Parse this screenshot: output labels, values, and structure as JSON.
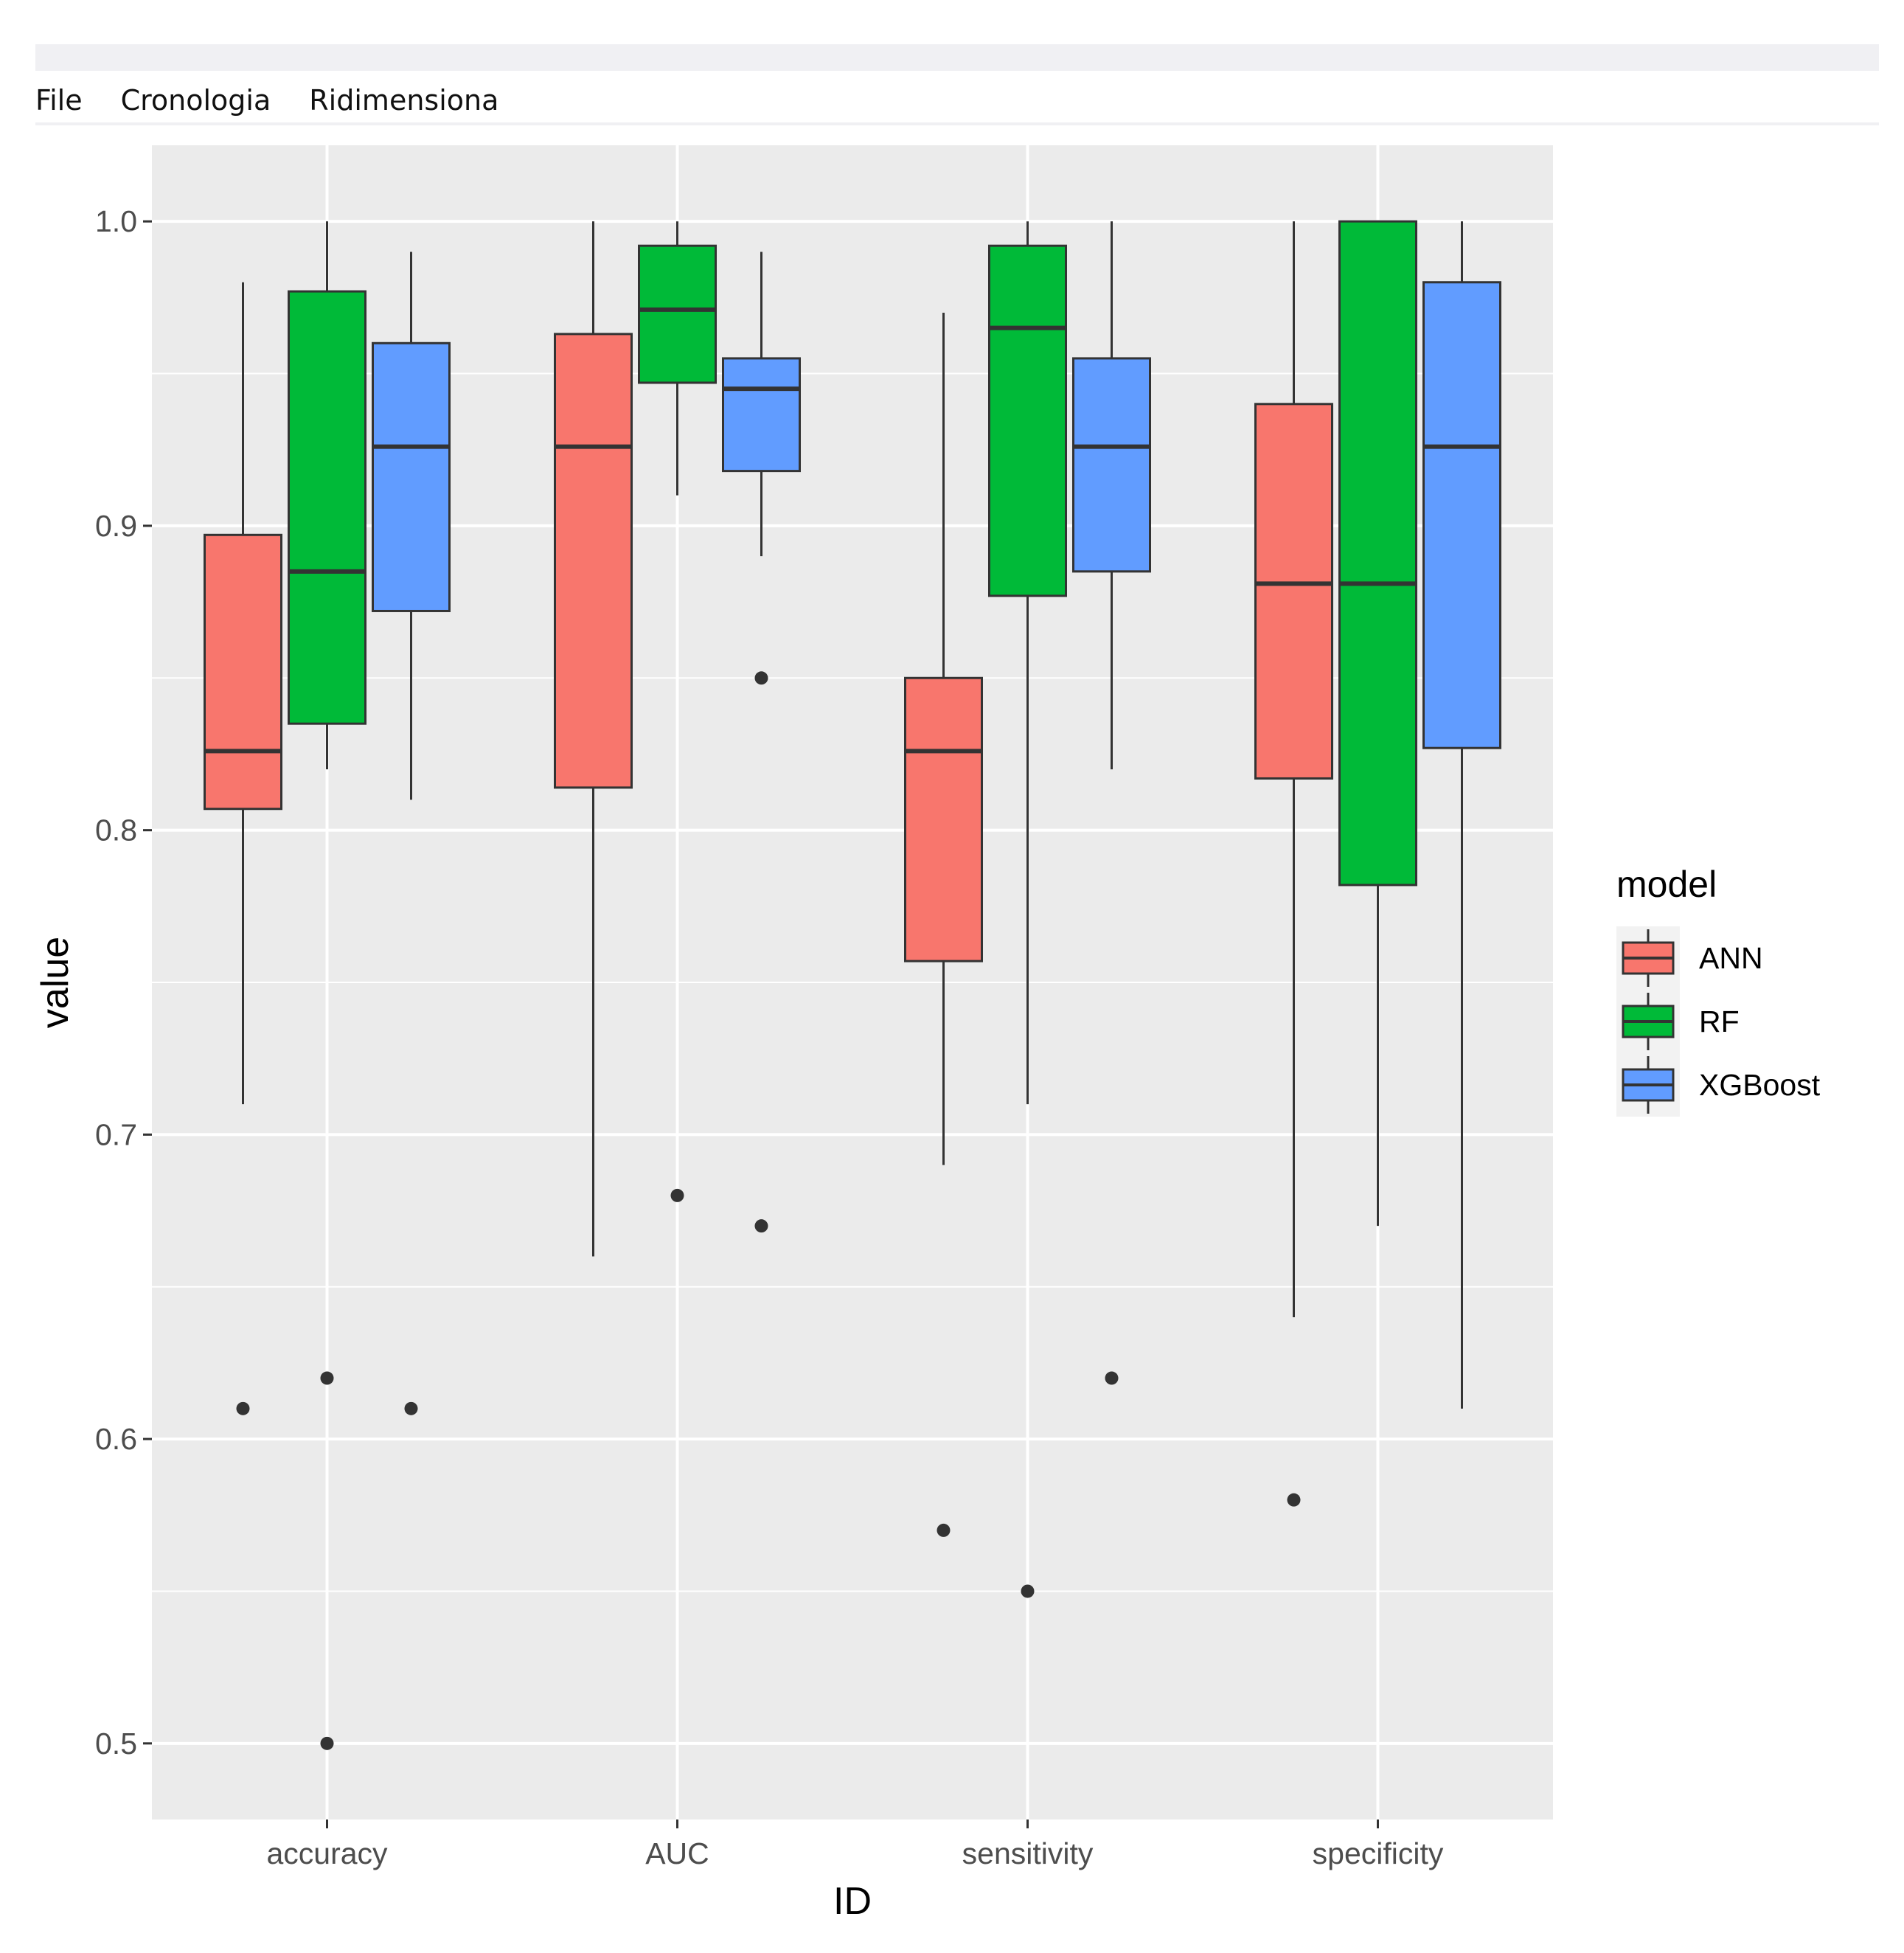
{
  "window": {
    "menu": [
      "File",
      "Cronologia",
      "Ridimensiona"
    ]
  },
  "chart_data": {
    "type": "boxplot",
    "title": "",
    "xlabel": "ID",
    "ylabel": "value",
    "ylim": [
      0.475,
      1.025
    ],
    "yticks": [
      0.5,
      0.6,
      0.7,
      0.8,
      0.9,
      1.0
    ],
    "ytick_labels": [
      "0.5",
      "0.6",
      "0.7",
      "0.8",
      "0.9",
      "1.0"
    ],
    "categories": [
      "accuracy",
      "AUC",
      "sensitivity",
      "specificity"
    ],
    "legend": {
      "title": "model",
      "position": "right"
    },
    "series": [
      {
        "name": "ANN",
        "color": "#F8766D",
        "boxes": [
          {
            "whisker_low": 0.71,
            "q1": 0.807,
            "median": 0.826,
            "q3": 0.897,
            "whisker_high": 0.98,
            "outliers": [
              0.61
            ]
          },
          {
            "whisker_low": 0.66,
            "q1": 0.814,
            "median": 0.926,
            "q3": 0.963,
            "whisker_high": 1.0,
            "outliers": []
          },
          {
            "whisker_low": 0.69,
            "q1": 0.757,
            "median": 0.826,
            "q3": 0.85,
            "whisker_high": 0.97,
            "outliers": [
              0.57
            ]
          },
          {
            "whisker_low": 0.64,
            "q1": 0.817,
            "median": 0.881,
            "q3": 0.94,
            "whisker_high": 1.0,
            "outliers": [
              0.58
            ]
          }
        ]
      },
      {
        "name": "RF",
        "color": "#00BA38",
        "boxes": [
          {
            "whisker_low": 0.82,
            "q1": 0.835,
            "median": 0.885,
            "q3": 0.977,
            "whisker_high": 1.0,
            "outliers": [
              0.62,
              0.5
            ]
          },
          {
            "whisker_low": 0.91,
            "q1": 0.947,
            "median": 0.971,
            "q3": 0.992,
            "whisker_high": 1.0,
            "outliers": [
              0.68
            ]
          },
          {
            "whisker_low": 0.71,
            "q1": 0.877,
            "median": 0.965,
            "q3": 0.992,
            "whisker_high": 1.0,
            "outliers": [
              0.55
            ]
          },
          {
            "whisker_low": 0.67,
            "q1": 0.782,
            "median": 0.881,
            "q3": 1.0,
            "whisker_high": 1.0,
            "outliers": []
          }
        ]
      },
      {
        "name": "XGBoost",
        "color": "#619CFF",
        "boxes": [
          {
            "whisker_low": 0.81,
            "q1": 0.872,
            "median": 0.926,
            "q3": 0.96,
            "whisker_high": 0.99,
            "outliers": [
              0.61
            ]
          },
          {
            "whisker_low": 0.89,
            "q1": 0.918,
            "median": 0.945,
            "q3": 0.955,
            "whisker_high": 0.99,
            "outliers": [
              0.85,
              0.67
            ]
          },
          {
            "whisker_low": 0.82,
            "q1": 0.885,
            "median": 0.926,
            "q3": 0.955,
            "whisker_high": 1.0,
            "outliers": [
              0.62
            ]
          },
          {
            "whisker_low": 0.61,
            "q1": 0.827,
            "median": 0.926,
            "q3": 0.98,
            "whisker_high": 1.0,
            "outliers": []
          }
        ]
      }
    ]
  }
}
